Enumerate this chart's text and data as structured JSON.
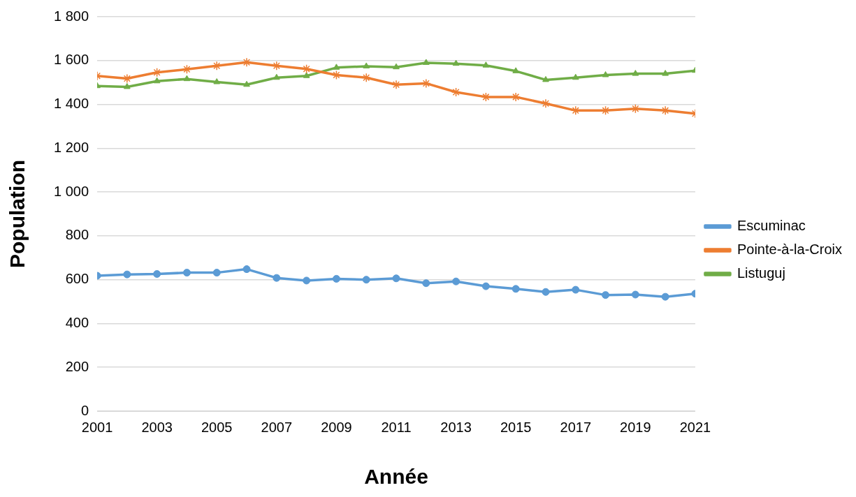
{
  "chart_data": {
    "type": "line",
    "xlabel": "Année",
    "ylabel": "Population",
    "x": [
      2001,
      2002,
      2003,
      2004,
      2005,
      2006,
      2007,
      2008,
      2009,
      2010,
      2011,
      2012,
      2013,
      2014,
      2015,
      2016,
      2017,
      2018,
      2019,
      2020,
      2021
    ],
    "series": [
      {
        "name": "Escuminac",
        "color": "#5b9bd5",
        "marker": "circle",
        "values": [
          618,
          624,
          626,
          632,
          632,
          648,
          608,
          596,
          604,
          600,
          606,
          584,
          592,
          570,
          558,
          544,
          554,
          530,
          532,
          522,
          536
        ]
      },
      {
        "name": "Pointe-à-la-Croix",
        "color": "#ed7d31",
        "marker": "cross",
        "values": [
          1530,
          1518,
          1546,
          1560,
          1576,
          1592,
          1576,
          1562,
          1534,
          1522,
          1490,
          1496,
          1456,
          1434,
          1434,
          1404,
          1372,
          1372,
          1380,
          1372,
          1358
        ]
      },
      {
        "name": "Listuguj",
        "color": "#70ad47",
        "marker": "triangle",
        "values": [
          1484,
          1480,
          1506,
          1516,
          1502,
          1490,
          1522,
          1530,
          1568,
          1574,
          1570,
          1590,
          1586,
          1578,
          1552,
          1512,
          1522,
          1534,
          1540,
          1540,
          1554
        ]
      }
    ],
    "xlim": [
      2001,
      2021
    ],
    "xticks": [
      2001,
      2003,
      2005,
      2007,
      2009,
      2011,
      2013,
      2015,
      2017,
      2019,
      2021
    ],
    "ylim": [
      0,
      1800
    ],
    "yticks": [
      0,
      200,
      400,
      600,
      800,
      {
        "value": 1000,
        "label": "1 000"
      },
      {
        "value": 1200,
        "label": "1 200"
      },
      {
        "value": 1400,
        "label": "1 400"
      },
      {
        "value": 1600,
        "label": "1 600"
      },
      {
        "value": 1800,
        "label": "1 800"
      }
    ],
    "grid": "y",
    "legend": "right",
    "line_style": "solid"
  }
}
